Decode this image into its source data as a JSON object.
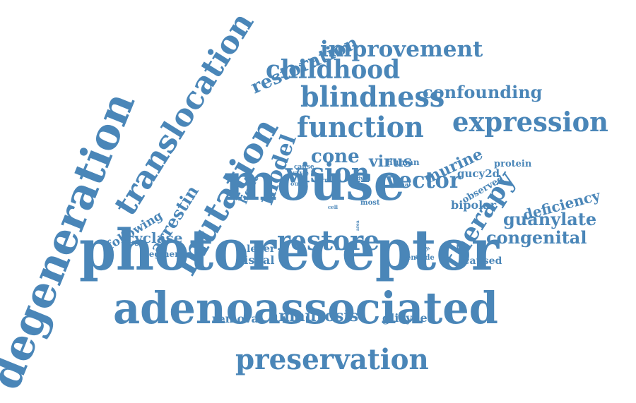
{
  "color": "#4a86b8",
  "words": [
    {
      "text": "photoreceptor",
      "size": "large",
      "orientation": "horizontal"
    },
    {
      "text": "adenoassociated",
      "size": "large",
      "orientation": "horizontal"
    },
    {
      "text": "mouse",
      "size": "large",
      "orientation": "horizontal"
    },
    {
      "text": "degeneration",
      "size": "large",
      "orientation": "diagonal"
    },
    {
      "text": "translocation",
      "size": "large",
      "orientation": "diagonal"
    },
    {
      "text": "mutation",
      "size": "large",
      "orientation": "diagonal"
    },
    {
      "text": "preservation",
      "size": "medium",
      "orientation": "horizontal"
    },
    {
      "text": "blindness",
      "size": "medium",
      "orientation": "horizontal"
    },
    {
      "text": "function",
      "size": "medium",
      "orientation": "horizontal"
    },
    {
      "text": "expression",
      "size": "medium",
      "orientation": "horizontal"
    },
    {
      "text": "vision",
      "size": "medium",
      "orientation": "horizontal"
    },
    {
      "text": "restore",
      "size": "medium",
      "orientation": "horizontal"
    },
    {
      "text": "childhood",
      "size": "medium",
      "orientation": "horizontal"
    },
    {
      "text": "improvement",
      "size": "medium",
      "orientation": "horizontal"
    },
    {
      "text": "therapy",
      "size": "medium",
      "orientation": "diagonal"
    },
    {
      "text": "restoration",
      "size": "medium",
      "orientation": "diagonal"
    },
    {
      "text": "model",
      "size": "medium",
      "orientation": "diagonal"
    },
    {
      "text": "vector",
      "size": "medium",
      "orientation": "horizontal"
    },
    {
      "text": "cone",
      "size": "small",
      "orientation": "horizontal"
    },
    {
      "text": "murine",
      "size": "small",
      "orientation": "diagonal"
    },
    {
      "text": "confounding",
      "size": "small",
      "orientation": "horizontal"
    },
    {
      "text": "arrestin",
      "size": "small",
      "orientation": "diagonal"
    },
    {
      "text": "guanylate",
      "size": "small",
      "orientation": "horizontal"
    },
    {
      "text": "congenital",
      "size": "small",
      "orientation": "horizontal"
    },
    {
      "text": "amaurosis",
      "size": "small",
      "orientation": "horizontal"
    },
    {
      "text": "deficiency",
      "size": "small",
      "orientation": "diagonal"
    },
    {
      "text": "cyclase",
      "size": "small",
      "orientation": "horizontal"
    },
    {
      "text": "following",
      "size": "small",
      "orientation": "diagonal"
    },
    {
      "text": "virus",
      "size": "small",
      "orientation": "horizontal"
    },
    {
      "text": "bipolar",
      "size": "small",
      "orientation": "horizontal"
    },
    {
      "text": "visual",
      "size": "small",
      "orientation": "horizontal"
    },
    {
      "text": "removal",
      "size": "small",
      "orientation": "horizontal"
    },
    {
      "text": "glicy2e",
      "size": "small",
      "orientation": "horizontal"
    },
    {
      "text": "caused",
      "size": "small",
      "orientation": "horizontal"
    },
    {
      "text": "leber",
      "size": "small",
      "orientation": "horizontal"
    },
    {
      "text": "light",
      "size": "small",
      "orientation": "diagonal"
    },
    {
      "text": "gucy2d",
      "size": "small",
      "orientation": "horizontal"
    },
    {
      "text": "protein",
      "size": "small",
      "orientation": "horizontal"
    },
    {
      "text": "human",
      "size": "small",
      "orientation": "horizontal"
    },
    {
      "text": "segment",
      "size": "small",
      "orientation": "horizontal"
    },
    {
      "text": "encode",
      "size": "small",
      "orientation": "horizontal"
    },
    {
      "text": "observed",
      "size": "small",
      "orientation": "diagonal"
    },
    {
      "text": "wave",
      "size": "small",
      "orientation": "horizontal"
    },
    {
      "text": "cause",
      "size": "small",
      "orientation": "horizontal"
    },
    {
      "text": "term",
      "size": "small",
      "orientation": "horizontal"
    },
    {
      "text": "outer",
      "size": "small",
      "orientation": "horizontal"
    },
    {
      "text": "study",
      "size": "small",
      "orientation": "horizontal"
    },
    {
      "text": "retinal",
      "size": "small",
      "orientation": "horizontal"
    },
    {
      "text": "most",
      "size": "small",
      "orientation": "horizontal"
    },
    {
      "text": "cell",
      "size": "small",
      "orientation": "horizontal"
    },
    {
      "text": "month",
      "size": "small",
      "orientation": "diagonal"
    },
    {
      "text": "area",
      "size": "small",
      "orientation": "vertical"
    }
  ]
}
